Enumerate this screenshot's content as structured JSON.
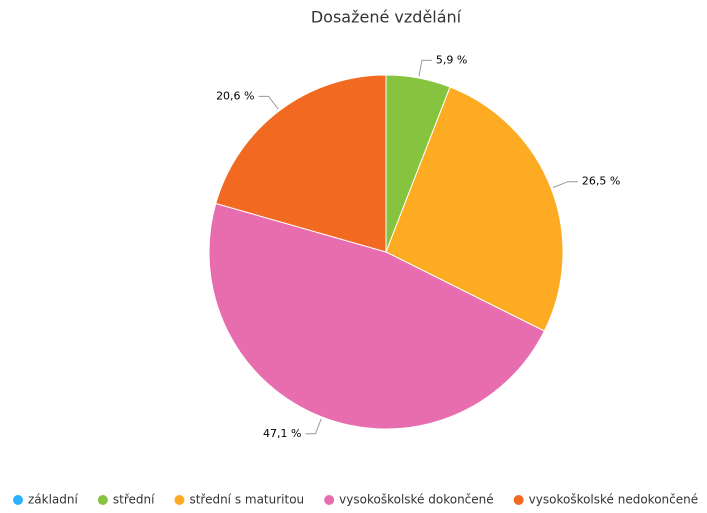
{
  "chart_data": {
    "type": "pie",
    "title": "Dosažené vzdělání",
    "categories": [
      "základní",
      "střední",
      "střední s maturitou",
      "vysokoškolské dokončené",
      "vysokoškolské nedokončené"
    ],
    "values": [
      0,
      5.9,
      26.5,
      47.1,
      20.6
    ],
    "value_labels": [
      null,
      "5,9 %",
      "26,5 %",
      "47,1 %",
      "20,6 %"
    ],
    "colors": [
      "#2caffe",
      "#86c440",
      "#fdab22",
      "#e86dae",
      "#f26a22"
    ],
    "legend": "bottom"
  }
}
